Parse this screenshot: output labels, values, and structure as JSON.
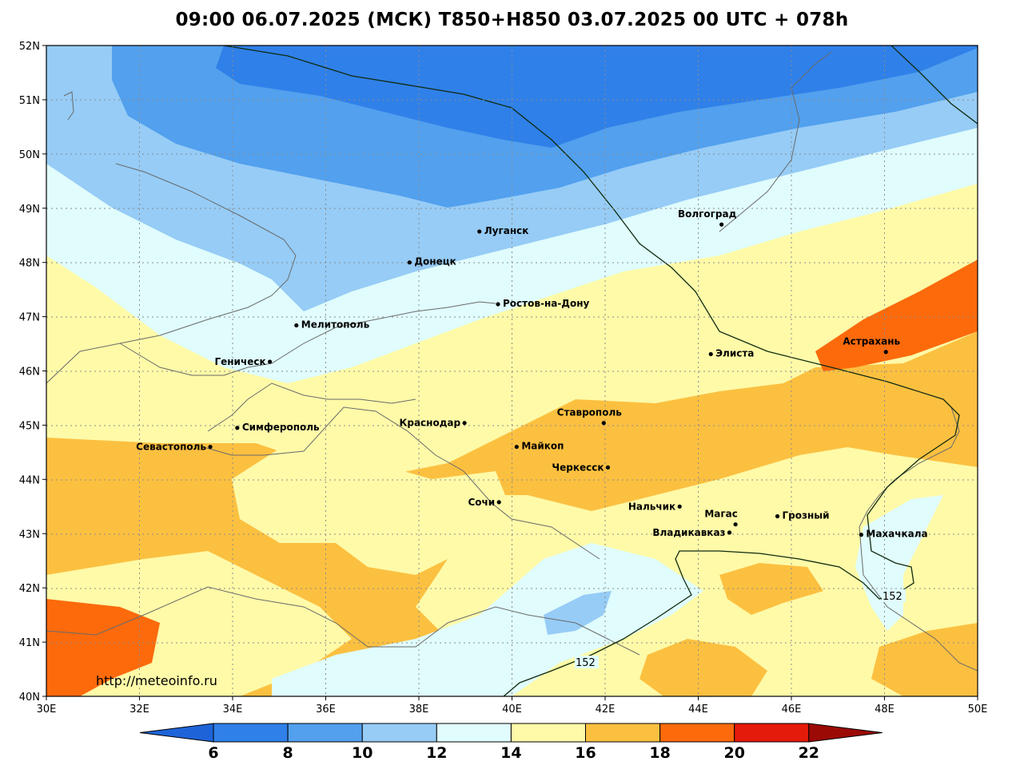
{
  "title": "09:00 06.07.2025 (МСК) T850+H850 03.07.2025 00 UTC + 078h",
  "source_url": "http://meteoinfo.ru",
  "map": {
    "lon_range": [
      30,
      50
    ],
    "lat_range": [
      40,
      52
    ],
    "lon_ticks": [
      "30E",
      "32E",
      "34E",
      "36E",
      "38E",
      "40E",
      "42E",
      "44E",
      "46E",
      "48E",
      "50E"
    ],
    "lat_ticks": [
      "52N",
      "51N",
      "50N",
      "49N",
      "48N",
      "47N",
      "46N",
      "45N",
      "44N",
      "43N",
      "42N",
      "41N",
      "40N"
    ],
    "grid": true
  },
  "colorbar": {
    "levels": [
      "6",
      "8",
      "10",
      "12",
      "14",
      "16",
      "18",
      "20",
      "22"
    ],
    "colors": [
      "#1e64d8",
      "#2f80e8",
      "#52a0ee",
      "#96ccf6",
      "#e0fcfc",
      "#fefaa8",
      "#fcc040",
      "#fc6a0c",
      "#e41a0a",
      "#9c0a06"
    ]
  },
  "contours": [
    {
      "value": "152",
      "label": "152"
    },
    {
      "value": "152",
      "label": "152"
    }
  ],
  "cities": [
    {
      "name": "Волгоград",
      "lon": 44.5,
      "lat": 48.7,
      "label_pos": "above"
    },
    {
      "name": "Луганск",
      "lon": 39.3,
      "lat": 48.57,
      "label_pos": "right"
    },
    {
      "name": "Донецк",
      "lon": 37.8,
      "lat": 48.0,
      "label_pos": "right"
    },
    {
      "name": "Ростов-на-Дону",
      "lon": 39.7,
      "lat": 47.23,
      "label_pos": "right"
    },
    {
      "name": "Мелитополь",
      "lon": 35.37,
      "lat": 46.84,
      "label_pos": "right"
    },
    {
      "name": "Геническ",
      "lon": 34.8,
      "lat": 46.17,
      "label_pos": "left"
    },
    {
      "name": "Астрахань",
      "lon": 48.03,
      "lat": 46.35,
      "label_pos": "above"
    },
    {
      "name": "Элиста",
      "lon": 44.27,
      "lat": 46.31,
      "label_pos": "right"
    },
    {
      "name": "Симферополь",
      "lon": 34.1,
      "lat": 44.95,
      "label_pos": "right"
    },
    {
      "name": "Севастополь",
      "lon": 33.52,
      "lat": 44.6,
      "label_pos": "left"
    },
    {
      "name": "Краснодар",
      "lon": 38.98,
      "lat": 45.04,
      "label_pos": "left"
    },
    {
      "name": "Ставрополь",
      "lon": 41.97,
      "lat": 45.04,
      "label_pos": "above"
    },
    {
      "name": "Майкоп",
      "lon": 40.1,
      "lat": 44.6,
      "label_pos": "right"
    },
    {
      "name": "Черкесск",
      "lon": 42.06,
      "lat": 44.22,
      "label_pos": "left"
    },
    {
      "name": "Сочи",
      "lon": 39.72,
      "lat": 43.58,
      "label_pos": "left"
    },
    {
      "name": "Нальчик",
      "lon": 43.6,
      "lat": 43.5,
      "label_pos": "left"
    },
    {
      "name": "Магас",
      "lon": 44.8,
      "lat": 43.17,
      "label_pos": "above"
    },
    {
      "name": "Грозный",
      "lon": 45.7,
      "lat": 43.32,
      "label_pos": "right"
    },
    {
      "name": "Владикавказ",
      "lon": 44.67,
      "lat": 43.02,
      "label_pos": "left"
    },
    {
      "name": "Махачкала",
      "lon": 47.5,
      "lat": 42.98,
      "label_pos": "right"
    }
  ]
}
